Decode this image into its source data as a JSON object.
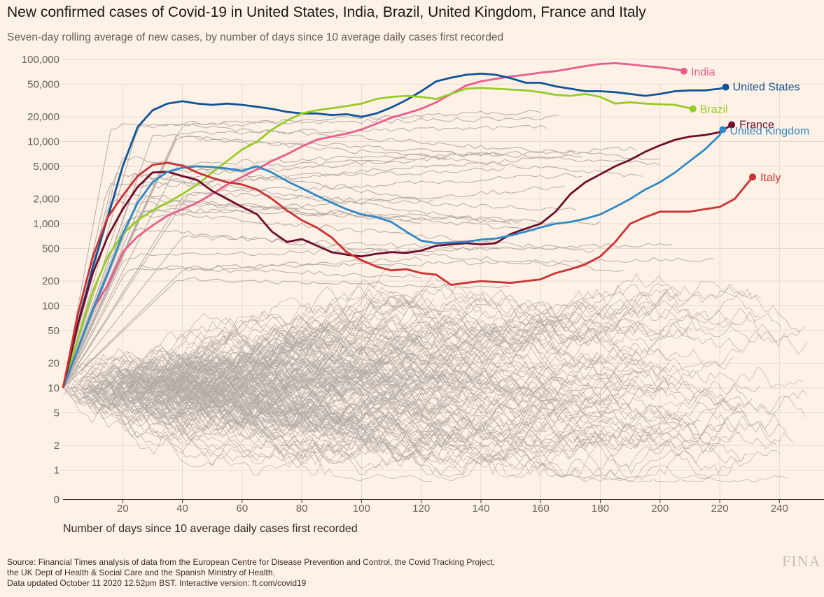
{
  "title": "New confirmed cases of Covid-19 in United States, India, Brazil, United Kingdom, France and Italy",
  "subtitle": "Seven-day rolling average of new cases, by number of days since 10 average daily cases first recorded",
  "source": {
    "line1": "Source: Financial Times analysis of data from the European Centre for Disease Prevention and Control, the Covid Tracking Project,",
    "line2": "the UK Dept of Health & Social Care and the Spanish Ministry of Health.",
    "line3": "Data updated October 11 2020 12.52pm BST. Interactive version: ft.com/covid19"
  },
  "brand": "FINA",
  "colors": {
    "background": "#fff1e5",
    "grid": "#e6d9ce",
    "background_lines": "#b3aca7",
    "axis_text": "#66605c"
  },
  "chart_data": {
    "type": "line",
    "scale": "symlog",
    "xlabel": "Number of days since 10 average daily cases first recorded",
    "ylabel": "",
    "xlim": [
      0,
      255
    ],
    "ylim": [
      0,
      100000
    ],
    "x_ticks": [
      20,
      40,
      60,
      80,
      100,
      120,
      140,
      160,
      180,
      200,
      220,
      240
    ],
    "y_ticks": [
      {
        "value": 100000,
        "label": "100,000"
      },
      {
        "value": 50000,
        "label": "50,000"
      },
      {
        "value": 20000,
        "label": "20,000"
      },
      {
        "value": 10000,
        "label": "10,000"
      },
      {
        "value": 5000,
        "label": "5,000"
      },
      {
        "value": 2000,
        "label": "2,000"
      },
      {
        "value": 1000,
        "label": "1,000"
      },
      {
        "value": 500,
        "label": "500"
      },
      {
        "value": 200,
        "label": "200"
      },
      {
        "value": 100,
        "label": "100"
      },
      {
        "value": 50,
        "label": "50"
      },
      {
        "value": 20,
        "label": "20"
      },
      {
        "value": 10,
        "label": "10"
      },
      {
        "value": 5,
        "label": "5"
      },
      {
        "value": 2,
        "label": "2"
      },
      {
        "value": 1,
        "label": "1"
      },
      {
        "value": 0,
        "label": "0"
      }
    ],
    "grid": true,
    "legend": "direct labels at line ends",
    "series": [
      {
        "name": "India",
        "color": "#e95d8c",
        "x": [
          0,
          5,
          10,
          15,
          20,
          25,
          30,
          35,
          40,
          45,
          50,
          55,
          60,
          65,
          70,
          75,
          80,
          85,
          90,
          95,
          100,
          105,
          110,
          115,
          120,
          125,
          130,
          135,
          140,
          145,
          150,
          155,
          160,
          165,
          170,
          175,
          180,
          185,
          190,
          195,
          200,
          205,
          208
        ],
        "y": [
          10,
          30,
          90,
          180,
          450,
          700,
          950,
          1250,
          1500,
          1800,
          2300,
          3000,
          3700,
          4600,
          5800,
          7000,
          8700,
          10500,
          11500,
          12500,
          14000,
          16500,
          19500,
          22000,
          25000,
          30000,
          38000,
          48000,
          54000,
          58000,
          62000,
          65000,
          69000,
          72000,
          77000,
          83000,
          88000,
          90000,
          87000,
          83000,
          80000,
          76000,
          72000
        ]
      },
      {
        "name": "United States",
        "color": "#0f5499",
        "x": [
          0,
          5,
          10,
          15,
          20,
          25,
          30,
          35,
          40,
          45,
          50,
          55,
          60,
          65,
          70,
          75,
          80,
          85,
          90,
          95,
          100,
          105,
          110,
          115,
          120,
          125,
          130,
          135,
          140,
          145,
          150,
          155,
          160,
          165,
          170,
          175,
          180,
          185,
          190,
          195,
          200,
          205,
          210,
          215,
          220,
          222
        ],
        "y": [
          10,
          60,
          300,
          1200,
          5000,
          15000,
          24000,
          29000,
          31000,
          29000,
          28000,
          29000,
          28000,
          26500,
          25000,
          23000,
          22000,
          22000,
          21000,
          21500,
          20000,
          22000,
          26000,
          32000,
          41000,
          54000,
          60000,
          65000,
          67000,
          65000,
          59000,
          52000,
          52000,
          47000,
          44000,
          41000,
          41000,
          40000,
          38000,
          36000,
          38000,
          41000,
          42000,
          42000,
          44000,
          46000
        ]
      },
      {
        "name": "Brazil",
        "color": "#96cc28",
        "x": [
          0,
          5,
          10,
          15,
          20,
          25,
          30,
          35,
          40,
          45,
          50,
          55,
          60,
          65,
          70,
          75,
          80,
          85,
          90,
          95,
          100,
          105,
          110,
          115,
          120,
          125,
          130,
          135,
          140,
          145,
          150,
          155,
          160,
          165,
          170,
          175,
          180,
          185,
          190,
          195,
          200,
          205,
          211
        ],
        "y": [
          10,
          40,
          150,
          400,
          750,
          1100,
          1450,
          1800,
          2300,
          3000,
          4200,
          5800,
          8000,
          10000,
          14000,
          18000,
          22000,
          24000,
          25500,
          27000,
          29000,
          33000,
          35000,
          36000,
          35000,
          33000,
          38000,
          44000,
          45000,
          44000,
          43000,
          42000,
          40000,
          37000,
          36000,
          38000,
          35000,
          29000,
          30000,
          29000,
          28500,
          28000,
          25000
        ]
      },
      {
        "name": "France",
        "color": "#6e0d2d",
        "x": [
          0,
          5,
          10,
          15,
          20,
          25,
          30,
          35,
          40,
          45,
          50,
          55,
          60,
          65,
          70,
          75,
          80,
          85,
          90,
          95,
          100,
          105,
          110,
          115,
          120,
          125,
          130,
          135,
          140,
          145,
          150,
          155,
          160,
          165,
          170,
          175,
          180,
          185,
          190,
          195,
          200,
          205,
          210,
          215,
          220,
          224
        ],
        "y": [
          10,
          60,
          250,
          700,
          1500,
          2800,
          4200,
          4300,
          3800,
          3400,
          2500,
          2000,
          1600,
          1300,
          800,
          600,
          650,
          540,
          450,
          420,
          400,
          430,
          450,
          440,
          470,
          540,
          560,
          580,
          560,
          580,
          750,
          870,
          1000,
          1400,
          2300,
          3200,
          4000,
          5000,
          6000,
          7500,
          9000,
          10500,
          11500,
          12000,
          13000,
          16000
        ]
      },
      {
        "name": "United Kingdom",
        "color": "#2e89c6",
        "x": [
          0,
          5,
          10,
          15,
          20,
          25,
          30,
          35,
          40,
          45,
          50,
          55,
          60,
          65,
          70,
          75,
          80,
          85,
          90,
          95,
          100,
          105,
          110,
          115,
          120,
          125,
          130,
          135,
          140,
          145,
          150,
          155,
          160,
          165,
          170,
          175,
          180,
          185,
          190,
          195,
          200,
          205,
          210,
          215,
          220,
          221
        ],
        "y": [
          10,
          30,
          90,
          250,
          750,
          1800,
          3200,
          4300,
          4800,
          5000,
          4900,
          4700,
          4400,
          5000,
          4200,
          3300,
          2700,
          2200,
          1800,
          1500,
          1300,
          1200,
          1050,
          800,
          620,
          580,
          590,
          600,
          640,
          660,
          720,
          800,
          900,
          1000,
          1050,
          1150,
          1300,
          1600,
          2000,
          2600,
          3200,
          4200,
          5800,
          8000,
          12000,
          14000
        ]
      },
      {
        "name": "Italy",
        "color": "#cc3233",
        "x": [
          0,
          5,
          10,
          15,
          20,
          25,
          30,
          35,
          40,
          45,
          50,
          55,
          60,
          65,
          70,
          75,
          80,
          85,
          90,
          95,
          100,
          105,
          110,
          115,
          120,
          125,
          130,
          135,
          140,
          145,
          150,
          155,
          160,
          165,
          170,
          175,
          180,
          185,
          190,
          195,
          200,
          205,
          210,
          215,
          220,
          225,
          231
        ],
        "y": [
          10,
          80,
          400,
          1200,
          2200,
          3800,
          5200,
          5500,
          5100,
          4200,
          3600,
          3200,
          3000,
          2600,
          2000,
          1450,
          1100,
          900,
          680,
          450,
          360,
          300,
          270,
          280,
          250,
          240,
          180,
          190,
          200,
          195,
          190,
          200,
          210,
          250,
          280,
          320,
          400,
          600,
          1000,
          1200,
          1400,
          1400,
          1400,
          1500,
          1600,
          2000,
          3700
        ]
      }
    ]
  }
}
